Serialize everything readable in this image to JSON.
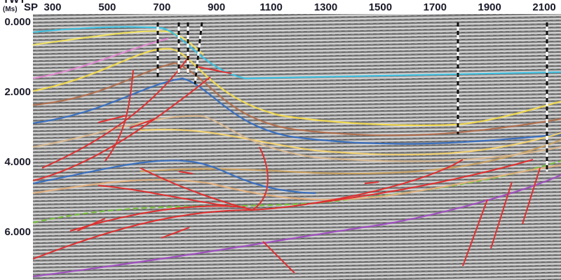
{
  "header": {
    "sp_label": "SP",
    "sp_ticks": [
      "300",
      "500",
      "700",
      "900",
      "1100",
      "1300",
      "1500",
      "1700",
      "1900",
      "2100"
    ]
  },
  "axis": {
    "title": "TWT",
    "unit": "(Ms)",
    "ticks": [
      "0.000",
      "2.000",
      "4.000",
      "6.000"
    ]
  }
}
